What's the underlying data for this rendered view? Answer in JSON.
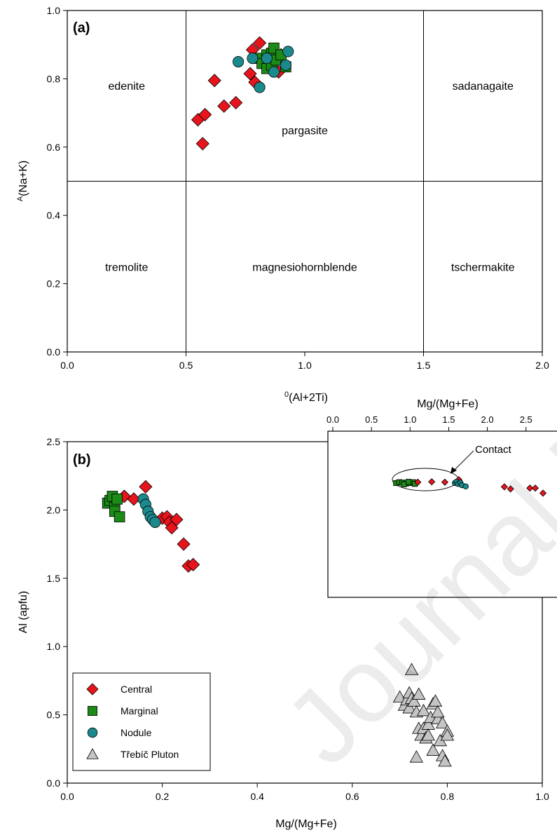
{
  "colors": {
    "central": "#e8141c",
    "marginal": "#1b8a16",
    "nodule": "#1a8a8c",
    "trebic": "#c4c4c4",
    "axis": "#000000"
  },
  "watermark": "Journal Pre-proof",
  "chart_data": [
    {
      "id": "a",
      "type": "scatter",
      "panel_label": "(a)",
      "xlabel_prefix": "0",
      "xlabel_main": "(Al+2Ti)",
      "ylabel_prefix": "A",
      "ylabel_main": "(Na+K)",
      "xlim": [
        0.0,
        2.0
      ],
      "ylim": [
        0.0,
        1.0
      ],
      "xticks": [
        "0.0",
        "0.5",
        "1.0",
        "1.5",
        "2.0"
      ],
      "yticks": [
        "0.0",
        "0.2",
        "0.4",
        "0.6",
        "0.8",
        "1.0"
      ],
      "grid": false,
      "field_boundaries": {
        "x": [
          0.5,
          1.5
        ],
        "y": [
          0.5
        ]
      },
      "fields": [
        {
          "label": "edenite",
          "x": 0.25,
          "y": 0.78
        },
        {
          "label": "pargasite",
          "x": 1.0,
          "y": 0.65
        },
        {
          "label": "sadanagaite",
          "x": 1.75,
          "y": 0.78
        },
        {
          "label": "tremolite",
          "x": 0.25,
          "y": 0.25
        },
        {
          "label": "magnesiohornblende",
          "x": 1.0,
          "y": 0.25
        },
        {
          "label": "tschermakite",
          "x": 1.75,
          "y": 0.25
        }
      ],
      "series": [
        {
          "name": "Central",
          "marker": "diamond",
          "points": [
            [
              0.55,
              0.68
            ],
            [
              0.58,
              0.695
            ],
            [
              0.57,
              0.61
            ],
            [
              0.62,
              0.795
            ],
            [
              0.66,
              0.72
            ],
            [
              0.71,
              0.73
            ],
            [
              0.77,
              0.815
            ],
            [
              0.79,
              0.79
            ],
            [
              0.78,
              0.885
            ],
            [
              0.81,
              0.905
            ],
            [
              0.86,
              0.84
            ],
            [
              0.89,
              0.82
            ],
            [
              0.9,
              0.87
            ]
          ]
        },
        {
          "name": "Marginal",
          "marker": "square",
          "points": [
            [
              0.8,
              0.86
            ],
            [
              0.82,
              0.845
            ],
            [
              0.84,
              0.87
            ],
            [
              0.86,
              0.875
            ],
            [
              0.87,
              0.89
            ],
            [
              0.84,
              0.83
            ],
            [
              0.86,
              0.84
            ],
            [
              0.88,
              0.855
            ],
            [
              0.9,
              0.87
            ],
            [
              0.92,
              0.835
            ]
          ]
        },
        {
          "name": "Nodule",
          "marker": "circle",
          "points": [
            [
              0.72,
              0.85
            ],
            [
              0.78,
              0.86
            ],
            [
              0.81,
              0.775
            ],
            [
              0.84,
              0.86
            ],
            [
              0.87,
              0.82
            ],
            [
              0.92,
              0.84
            ],
            [
              0.93,
              0.88
            ]
          ]
        }
      ]
    },
    {
      "id": "b",
      "type": "scatter",
      "panel_label": "(b)",
      "xlabel": "Mg/(Mg+Fe)",
      "ylabel": "Al (apfu)",
      "xlim": [
        0.0,
        1.0
      ],
      "ylim": [
        0.0,
        2.5
      ],
      "xticks": [
        "0.0",
        "0.2",
        "0.4",
        "0.6",
        "0.8",
        "1.0"
      ],
      "yticks": [
        "0.0",
        "0.5",
        "1.0",
        "1.5",
        "2.0",
        "2.5"
      ],
      "grid": false,
      "legend": {
        "placement": "bottom-left",
        "entries": [
          {
            "name": "Central",
            "marker": "diamond"
          },
          {
            "name": "Marginal",
            "marker": "square"
          },
          {
            "name": "Nodule",
            "marker": "circle"
          },
          {
            "name": "Třebíč Pluton",
            "marker": "triangle"
          }
        ]
      },
      "series": [
        {
          "name": "Central",
          "marker": "diamond",
          "points": [
            [
              0.12,
              2.1
            ],
            [
              0.14,
              2.08
            ],
            [
              0.165,
              2.17
            ],
            [
              0.2,
              1.94
            ],
            [
              0.21,
              1.95
            ],
            [
              0.215,
              1.91
            ],
            [
              0.22,
              1.87
            ],
            [
              0.23,
              1.93
            ],
            [
              0.245,
              1.75
            ],
            [
              0.255,
              1.59
            ],
            [
              0.265,
              1.6
            ]
          ]
        },
        {
          "name": "Marginal",
          "marker": "square",
          "points": [
            [
              0.085,
              2.05
            ],
            [
              0.09,
              2.07
            ],
            [
              0.095,
              2.1
            ],
            [
              0.1,
              2.02
            ],
            [
              0.1,
              1.99
            ],
            [
              0.105,
              2.08
            ],
            [
              0.11,
              1.95
            ]
          ]
        },
        {
          "name": "Nodule",
          "marker": "circle",
          "points": [
            [
              0.16,
              2.08
            ],
            [
              0.165,
              2.04
            ],
            [
              0.17,
              1.99
            ],
            [
              0.175,
              1.95
            ],
            [
              0.18,
              1.93
            ],
            [
              0.185,
              1.91
            ]
          ]
        },
        {
          "name": "Třebíč Pluton",
          "marker": "triangle",
          "points": [
            [
              0.7,
              0.63
            ],
            [
              0.71,
              0.57
            ],
            [
              0.715,
              0.61
            ],
            [
              0.72,
              0.66
            ],
            [
              0.72,
              0.55
            ],
            [
              0.725,
              0.62
            ],
            [
              0.725,
              0.83
            ],
            [
              0.73,
              0.6
            ],
            [
              0.735,
              0.52
            ],
            [
              0.735,
              0.19
            ],
            [
              0.74,
              0.65
            ],
            [
              0.74,
              0.4
            ],
            [
              0.745,
              0.35
            ],
            [
              0.75,
              0.53
            ],
            [
              0.75,
              0.4
            ],
            [
              0.755,
              0.33
            ],
            [
              0.76,
              0.43
            ],
            [
              0.76,
              0.35
            ],
            [
              0.765,
              0.48
            ],
            [
              0.77,
              0.58
            ],
            [
              0.77,
              0.24
            ],
            [
              0.775,
              0.6
            ],
            [
              0.78,
              0.47
            ],
            [
              0.78,
              0.52
            ],
            [
              0.785,
              0.31
            ],
            [
              0.79,
              0.44
            ],
            [
              0.79,
              0.2
            ],
            [
              0.795,
              0.16
            ],
            [
              0.8,
              0.38
            ],
            [
              0.8,
              0.35
            ]
          ]
        }
      ],
      "inset": {
        "type": "scatter",
        "xlabel": "Mg/(Mg+Fe)",
        "xlim": [
          0.0,
          3.0
        ],
        "xticks": [
          "0.0",
          "0.5",
          "1.0",
          "1.5",
          "2.0",
          "2.5"
        ],
        "annotation": "Contact",
        "series": [
          {
            "name": "Marginal",
            "marker": "square",
            "points": [
              [
                0.82,
                0.0
              ],
              [
                0.86,
                0.02
              ],
              [
                0.9,
                0.01
              ],
              [
                0.95,
                -0.01
              ],
              [
                1.0,
                0.0
              ],
              [
                1.04,
                0.02
              ],
              [
                0.92,
                -0.03
              ],
              [
                0.98,
                0.03
              ],
              [
                1.06,
                -0.02
              ]
            ]
          },
          {
            "name": "Central",
            "marker": "diamond",
            "points": [
              [
                1.1,
                0.02
              ],
              [
                1.28,
                0.03
              ],
              [
                1.45,
                0.02
              ],
              [
                1.63,
                0.08
              ],
              [
                2.22,
                -0.09
              ],
              [
                2.3,
                -0.14
              ],
              [
                2.55,
                -0.12
              ],
              [
                2.62,
                -0.12
              ],
              [
                2.72,
                -0.24
              ]
            ]
          },
          {
            "name": "Nodule",
            "marker": "circle",
            "points": [
              [
                1.58,
                0.0
              ],
              [
                1.6,
                0.03
              ],
              [
                1.62,
                -0.02
              ],
              [
                1.65,
                0.01
              ],
              [
                1.67,
                -0.05
              ],
              [
                1.72,
                -0.08
              ]
            ]
          }
        ]
      }
    }
  ]
}
